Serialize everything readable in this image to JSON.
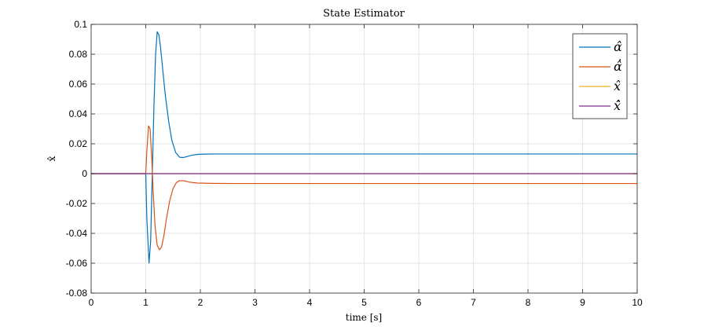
{
  "chart_data": {
    "type": "line",
    "title": "State Estimator",
    "xlabel": "time [s]",
    "ylabel": "x̂",
    "xlim": [
      0,
      10
    ],
    "ylim": [
      -0.08,
      0.1
    ],
    "xticks": [
      0,
      1,
      2,
      3,
      4,
      5,
      6,
      7,
      8,
      9,
      10
    ],
    "yticks": [
      -0.08,
      -0.06,
      -0.04,
      -0.02,
      0,
      0.02,
      0.04,
      0.06,
      0.08,
      0.1
    ],
    "xtick_labels": [
      "0",
      "1",
      "2",
      "3",
      "4",
      "5",
      "6",
      "7",
      "8",
      "9",
      "10"
    ],
    "ytick_labels": [
      "-0.08",
      "-0.06",
      "-0.04",
      "-0.02",
      "0",
      "0.02",
      "0.04",
      "0.06",
      "0.08",
      "0.1"
    ],
    "grid": true,
    "legend_position": "top-right",
    "series": [
      {
        "name": "α̂",
        "color": "#0072BD",
        "x": [
          0,
          1.0,
          1.02,
          1.06,
          1.09,
          1.12,
          1.15,
          1.18,
          1.21,
          1.24,
          1.27,
          1.31,
          1.36,
          1.42,
          1.48,
          1.55,
          1.62,
          1.69,
          1.76,
          1.85,
          1.95,
          2.1,
          2.3,
          2.6,
          3.0,
          10
        ],
        "y": [
          0,
          0,
          -0.03,
          -0.06,
          -0.045,
          0.0,
          0.045,
          0.08,
          0.095,
          0.093,
          0.085,
          0.07,
          0.052,
          0.035,
          0.022,
          0.014,
          0.011,
          0.0108,
          0.0115,
          0.0124,
          0.0129,
          0.0131,
          0.0132,
          0.0132,
          0.0132,
          0.0132
        ]
      },
      {
        "name": "α̂̇",
        "color": "#D95319",
        "x": [
          0,
          1.0,
          1.02,
          1.05,
          1.08,
          1.11,
          1.14,
          1.17,
          1.21,
          1.25,
          1.29,
          1.33,
          1.38,
          1.44,
          1.5,
          1.56,
          1.62,
          1.7,
          1.8,
          1.95,
          2.2,
          2.6,
          10
        ],
        "y": [
          0,
          0,
          0.015,
          0.032,
          0.03,
          0.01,
          -0.015,
          -0.035,
          -0.048,
          -0.051,
          -0.049,
          -0.042,
          -0.03,
          -0.018,
          -0.01,
          -0.006,
          -0.0047,
          -0.0048,
          -0.0057,
          -0.0063,
          -0.0065,
          -0.0066,
          -0.0066
        ]
      },
      {
        "name": "x̂",
        "color": "#EDB120",
        "x": [
          0,
          10
        ],
        "y": [
          0,
          0
        ]
      },
      {
        "name": "x̂̇",
        "color": "#7E2F8E",
        "x": [
          0,
          10
        ],
        "y": [
          0,
          0
        ]
      }
    ]
  }
}
